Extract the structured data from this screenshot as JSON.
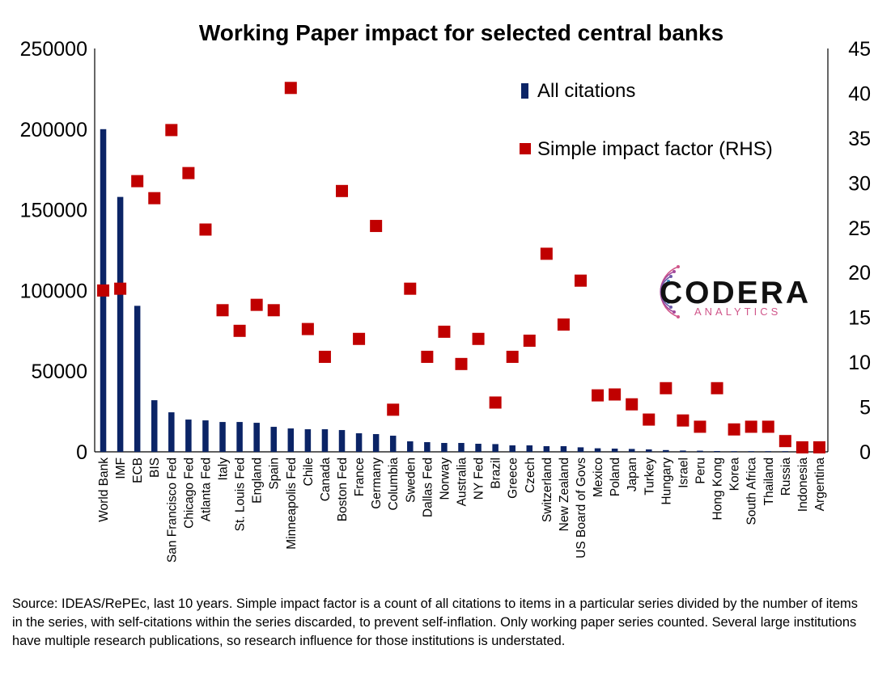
{
  "chart_data": {
    "type": "bar",
    "title": "Working Paper impact for selected central banks",
    "categories": [
      "World Bank",
      "IMF",
      "ECB",
      "BIS",
      "San Francisco Fed",
      "Chicago Fed",
      "Atlanta Fed",
      "Italy",
      "St. Louis Fed",
      "England",
      "Spain",
      "Minneapolis Fed",
      "Chile",
      "Canada",
      "Boston Fed",
      "France",
      "Germany",
      "Columbia",
      "Sweden",
      "Dallas Fed",
      "Norway",
      "Australia",
      "NY Fed",
      "Brazil",
      "Greece",
      "Czech",
      "Switzerland",
      "New Zealand",
      "US Board of Govs",
      "Mexico",
      "Poland",
      "Japan",
      "Turkey",
      "Hungary",
      "Israel",
      "Peru",
      "Hong Kong",
      "Korea",
      "South Africa",
      "Thailand",
      "Russia",
      "Indonesia",
      "Argentina"
    ],
    "series": [
      {
        "name": "All citations",
        "type": "bar",
        "axis": "left",
        "color": "#0b2466",
        "values": [
          200000,
          158000,
          90500,
          32000,
          24500,
          20000,
          19500,
          18500,
          18500,
          18000,
          15500,
          14500,
          14000,
          14000,
          13500,
          11500,
          11000,
          10000,
          6500,
          6000,
          5500,
          5500,
          5000,
          4800,
          4000,
          4000,
          3500,
          3500,
          2800,
          2200,
          2000,
          1800,
          1500,
          1100,
          800,
          700,
          500,
          400,
          300,
          250,
          200,
          150,
          100
        ]
      },
      {
        "name": "Simple impact factor (RHS)",
        "type": "scatter",
        "axis": "right",
        "color": "#c00000",
        "values": [
          18,
          18.2,
          30.2,
          28.3,
          35.9,
          31.1,
          24.8,
          15.8,
          13.5,
          16.4,
          15.8,
          40.6,
          13.7,
          10.6,
          29.1,
          12.6,
          25.2,
          4.7,
          18.2,
          10.6,
          13.4,
          9.8,
          12.6,
          5.5,
          10.6,
          12.4,
          22.1,
          14.2,
          19.1,
          6.3,
          6.4,
          5.3,
          3.6,
          7.1,
          3.5,
          2.8,
          7.1,
          2.5,
          2.8,
          2.8,
          1.2,
          0.5,
          0.5
        ]
      }
    ],
    "y_left": {
      "range": [
        0,
        250000
      ],
      "ticks": [
        "0",
        "50000",
        "100000",
        "150000",
        "200000",
        "250000"
      ]
    },
    "y_right": {
      "range": [
        0,
        45
      ],
      "ticks": [
        "0",
        "5",
        "10",
        "15",
        "20",
        "25",
        "30",
        "35",
        "40",
        "45"
      ]
    },
    "xlabel": "",
    "ylabel": "",
    "legend": [
      "All citations",
      "Simple impact factor (RHS)"
    ],
    "legend_position": "top-right",
    "grid": false
  },
  "logo": {
    "name": "CODERA",
    "tagline": "ANALYTICS"
  },
  "source_note": "Source: IDEAS/RePEc, last 10 years. Simple impact factor is a count of all citations to items in a particular series divided by the number of items in the series, with self-citations within the series discarded, to prevent self-inflation. Only working paper series counted. Several large institutions have multiple research publications, so research influence for those institutions is understated."
}
